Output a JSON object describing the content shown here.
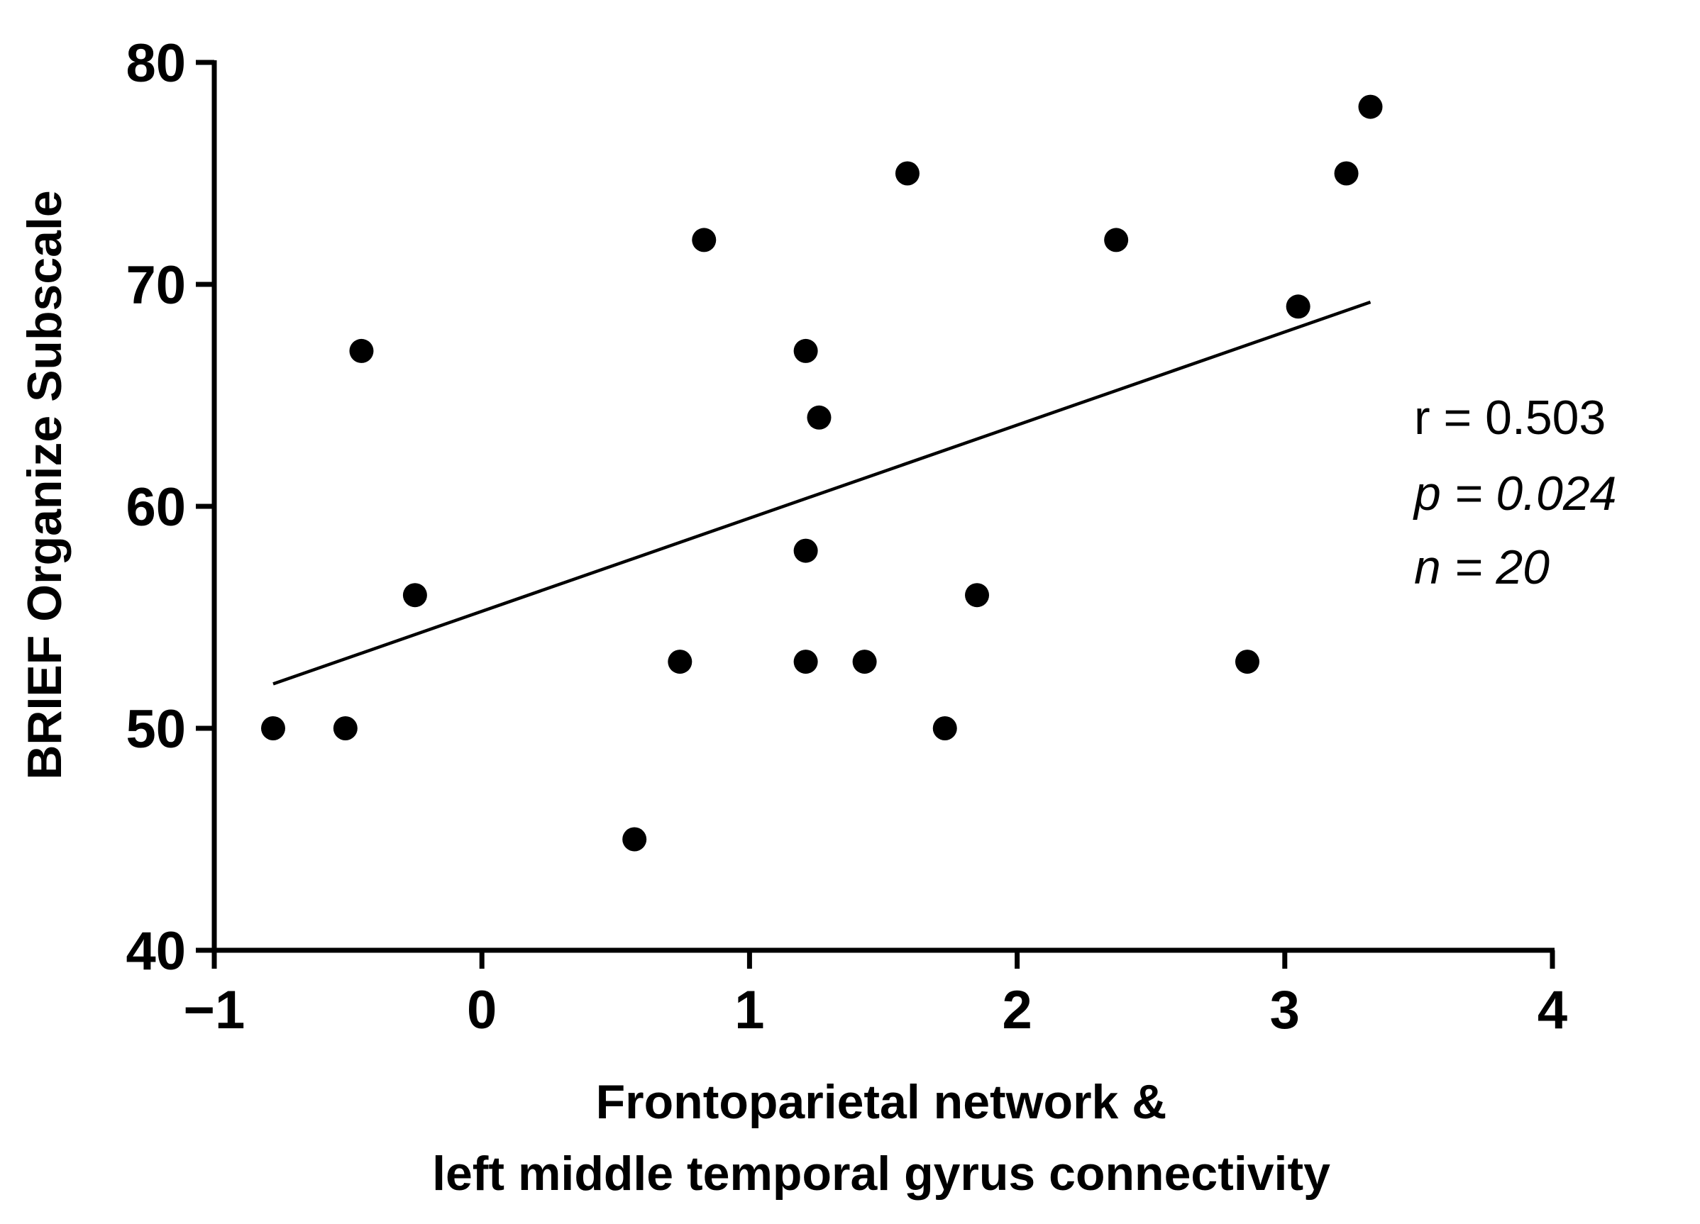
{
  "chart_data": {
    "type": "scatter",
    "title": "",
    "xlabel_lines": [
      "Frontoparietal network &",
      "left middle temporal gyrus connectivity"
    ],
    "ylabel": "BRIEF Organize Subscale",
    "xlim": [
      -1,
      4
    ],
    "ylim": [
      40,
      80
    ],
    "x_ticks": [
      -1,
      0,
      1,
      2,
      3,
      4
    ],
    "x_tick_labels": [
      "−1",
      "0",
      "1",
      "2",
      "3",
      "4"
    ],
    "y_ticks": [
      40,
      50,
      60,
      70,
      80
    ],
    "y_tick_labels": [
      "40",
      "50",
      "60",
      "70",
      "80"
    ],
    "grid": false,
    "legend": "none",
    "point_color": "#000000",
    "line_color": "#000000",
    "points": [
      {
        "x": -0.78,
        "y": 50
      },
      {
        "x": -0.51,
        "y": 50
      },
      {
        "x": -0.45,
        "y": 67
      },
      {
        "x": -0.25,
        "y": 56
      },
      {
        "x": 0.57,
        "y": 45
      },
      {
        "x": 0.74,
        "y": 53
      },
      {
        "x": 0.83,
        "y": 72
      },
      {
        "x": 1.21,
        "y": 67
      },
      {
        "x": 1.21,
        "y": 58
      },
      {
        "x": 1.21,
        "y": 53
      },
      {
        "x": 1.26,
        "y": 64
      },
      {
        "x": 1.43,
        "y": 53
      },
      {
        "x": 1.59,
        "y": 75
      },
      {
        "x": 1.73,
        "y": 50
      },
      {
        "x": 1.85,
        "y": 56
      },
      {
        "x": 2.37,
        "y": 72
      },
      {
        "x": 2.86,
        "y": 53
      },
      {
        "x": 3.05,
        "y": 69
      },
      {
        "x": 3.23,
        "y": 75
      },
      {
        "x": 3.32,
        "y": 78
      }
    ],
    "regression_line": {
      "x": [
        -0.78,
        3.32
      ],
      "y": [
        52.0,
        69.2
      ]
    },
    "stats": {
      "r": "r = 0.503",
      "p": "p = 0.024",
      "n": "n = 20"
    }
  }
}
